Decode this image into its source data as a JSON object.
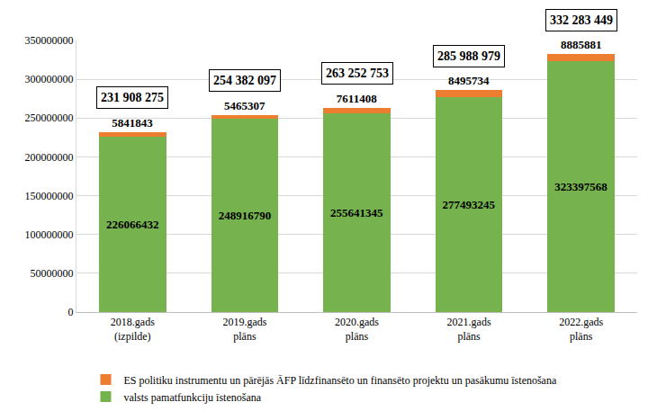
{
  "chart_data": {
    "type": "bar",
    "stacked": true,
    "data_labels": true,
    "grid": true,
    "legend": "bottom",
    "categories": [
      "2018.gads (izpilde)",
      "2019.gads plāns",
      "2020.gads plāns",
      "2021.gads plāns",
      "2022.gads plāns"
    ],
    "series": [
      {
        "name": "valsts pamatfunkciju īstenošana",
        "color": "#76b34f",
        "values": [
          226066432,
          248916790,
          255641345,
          277493245,
          323397568
        ]
      },
      {
        "name": "ES politiku instrumentu un pārējās ĀFP līdzfinansēto un finansēto projektu un pasākumu īstenošana",
        "color": "#ed7d31",
        "values": [
          5841843,
          5465307,
          7611408,
          8495734,
          8885881
        ]
      }
    ],
    "annotations": [
      {
        "category": "2018.gads (izpilde)",
        "value": 231908275,
        "label": "231 908 275"
      },
      {
        "category": "2019.gads plāns",
        "value": 254382097,
        "label": "254 382 097"
      },
      {
        "category": "2020.gads plāns",
        "value": 263252753,
        "label": "263 252 753"
      },
      {
        "category": "2021.gads plāns",
        "value": 285988979,
        "label": "285 988 979"
      },
      {
        "category": "2022.gads plāns",
        "value": 332283449,
        "label": "332 283 449"
      }
    ],
    "ylim": [
      0,
      350000000
    ],
    "yticks": [
      0,
      50000000,
      100000000,
      150000000,
      200000000,
      250000000,
      300000000,
      350000000
    ]
  }
}
